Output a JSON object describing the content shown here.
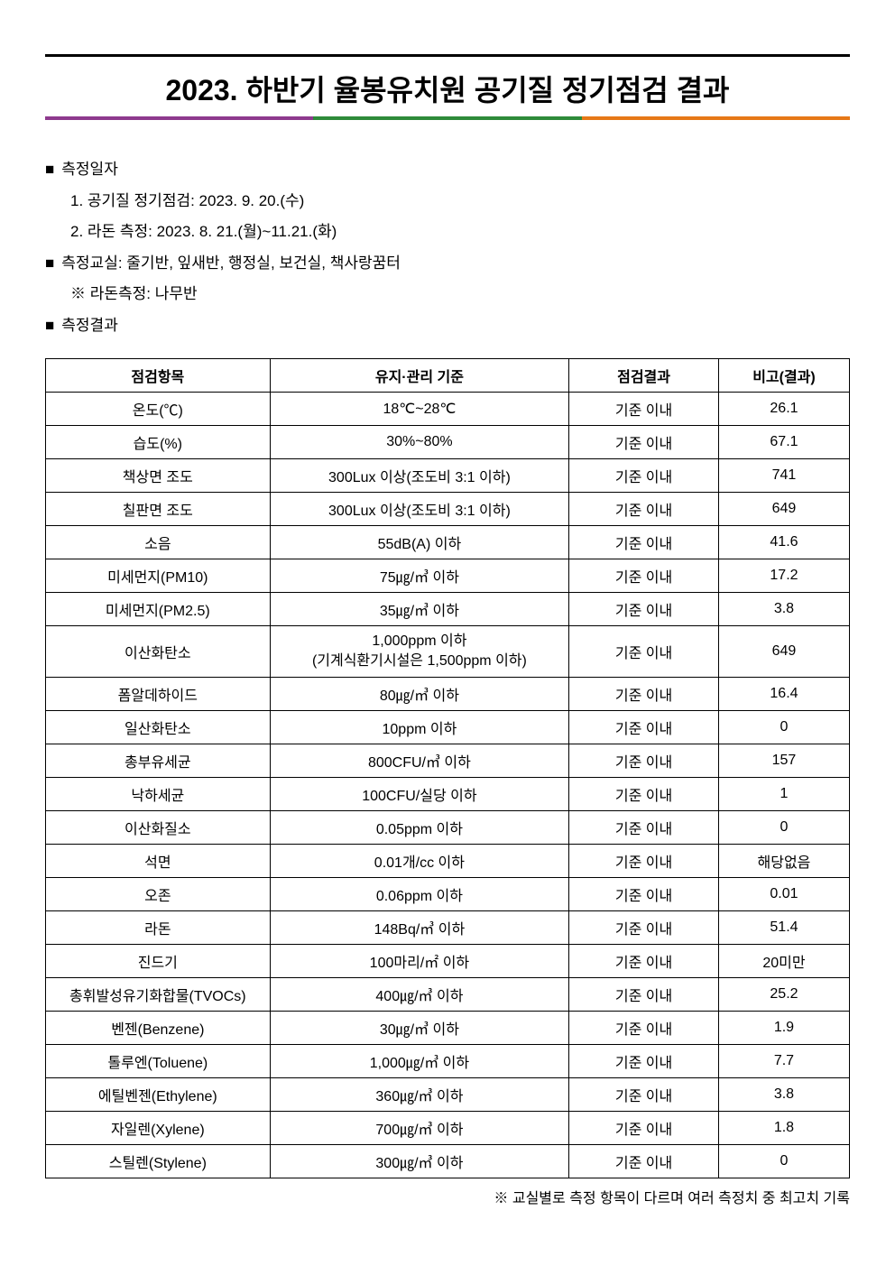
{
  "document": {
    "title": "2023. 하반기 율봉유치원 공기질 정기점검 결과",
    "underline_colors": [
      "#8e3a8e",
      "#2e8b3a",
      "#e67817"
    ],
    "text_color": "#000000",
    "border_color": "#000000",
    "title_fontsize": 32,
    "body_fontsize": 17,
    "table_fontsize": 16
  },
  "info": {
    "bullet_glyph": "■",
    "date_label": "측정일자",
    "date_line1": "1. 공기질 정기점검: 2023. 9. 20.(수)",
    "date_line2": "2. 라돈 측정: 2023. 8. 21.(월)~11.21.(화)",
    "room_label": "측정교실: 줄기반, 잎새반, 행정실, 보건실, 책사랑꿈터",
    "room_note": "※ 라돈측정: 나무반",
    "result_label": "측정결과"
  },
  "table": {
    "headers": {
      "item": "점검항목",
      "standard": "유지·관리 기준",
      "result": "점검결과",
      "remark": "비고(결과)"
    },
    "col_widths": [
      "24%",
      "32%",
      "16%",
      "14%"
    ],
    "rows": [
      {
        "item": "온도(℃)",
        "standard": "18℃~28℃",
        "result": "기준 이내",
        "remark": "26.1"
      },
      {
        "item": "습도(%)",
        "standard": "30%~80%",
        "result": "기준 이내",
        "remark": "67.1"
      },
      {
        "item": "책상면 조도",
        "standard": "300Lux 이상(조도비 3:1 이하)",
        "result": "기준 이내",
        "remark": "741"
      },
      {
        "item": "칠판면 조도",
        "standard": "300Lux 이상(조도비 3:1 이하)",
        "result": "기준 이내",
        "remark": "649"
      },
      {
        "item": "소음",
        "standard": "55dB(A) 이하",
        "result": "기준 이내",
        "remark": "41.6"
      },
      {
        "item": "미세먼지(PM10)",
        "standard": "75㎍/㎥ 이하",
        "result": "기준 이내",
        "remark": "17.2"
      },
      {
        "item": "미세먼지(PM2.5)",
        "standard": "35㎍/㎥ 이하",
        "result": "기준 이내",
        "remark": "3.8"
      },
      {
        "item": "이산화탄소",
        "standard_line1": "1,000ppm 이하",
        "standard_line2": "(기계식환기시설은 1,500ppm 이하)",
        "result": "기준 이내",
        "remark": "649",
        "multiline": true
      },
      {
        "item": "폼알데하이드",
        "standard": "80㎍/㎥ 이하",
        "result": "기준 이내",
        "remark": "16.4"
      },
      {
        "item": "일산화탄소",
        "standard": "10ppm 이하",
        "result": "기준 이내",
        "remark": "0"
      },
      {
        "item": "총부유세균",
        "standard": "800CFU/㎥ 이하",
        "result": "기준 이내",
        "remark": "157"
      },
      {
        "item": "낙하세균",
        "standard": "100CFU/실당 이하",
        "result": "기준 이내",
        "remark": "1"
      },
      {
        "item": "이산화질소",
        "standard": "0.05ppm 이하",
        "result": "기준 이내",
        "remark": "0"
      },
      {
        "item": "석면",
        "standard": "0.01개/cc 이하",
        "result": "기준 이내",
        "remark": "해당없음"
      },
      {
        "item": "오존",
        "standard": "0.06ppm 이하",
        "result": "기준 이내",
        "remark": "0.01"
      },
      {
        "item": "라돈",
        "standard": "148Bq/㎥ 이하",
        "result": "기준 이내",
        "remark": "51.4"
      },
      {
        "item": "진드기",
        "standard": "100마리/㎡ 이하",
        "result": "기준 이내",
        "remark": "20미만"
      },
      {
        "item": "총휘발성유기화합물(TVOCs)",
        "standard": "400㎍/㎥ 이하",
        "result": "기준 이내",
        "remark": "25.2"
      },
      {
        "item": "벤젠(Benzene)",
        "standard": "30㎍/㎥ 이하",
        "result": "기준 이내",
        "remark": "1.9"
      },
      {
        "item": "톨루엔(Toluene)",
        "standard": "1,000㎍/㎥ 이하",
        "result": "기준 이내",
        "remark": "7.7"
      },
      {
        "item": "에틸벤젠(Ethylene)",
        "standard": "360㎍/㎥ 이하",
        "result": "기준 이내",
        "remark": "3.8"
      },
      {
        "item": "자일렌(Xylene)",
        "standard": "700㎍/㎥ 이하",
        "result": "기준 이내",
        "remark": "1.8"
      },
      {
        "item": "스틸렌(Stylene)",
        "standard": "300㎍/㎥ 이하",
        "result": "기준 이내",
        "remark": "0"
      }
    ]
  },
  "footnote": "※ 교실별로 측정 항목이 다르며 여러 측정치 중 최고치 기록"
}
